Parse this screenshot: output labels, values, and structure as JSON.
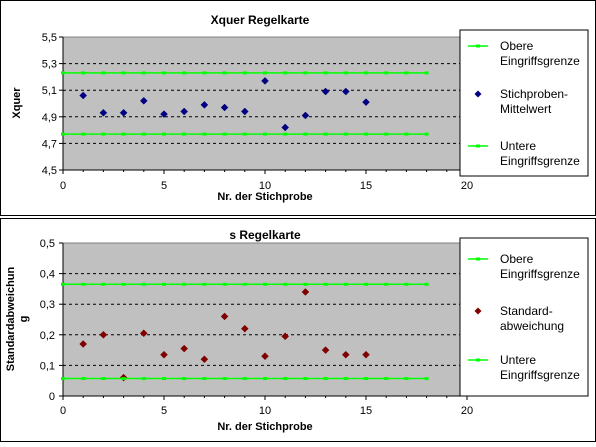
{
  "chart_data": [
    {
      "type": "scatter",
      "title": "Xquer Regelkarte",
      "xlabel": "Nr. der Stichprobe",
      "ylabel": "Xquer",
      "xlim": [
        0,
        20
      ],
      "ylim": [
        4.5,
        5.5
      ],
      "x_ticks": [
        "0",
        "5",
        "10",
        "15",
        "20"
      ],
      "y_ticks": [
        "4,5",
        "4,7",
        "4,9",
        "5,1",
        "5,3",
        "5,5"
      ],
      "grid": "horizontal-dashed",
      "legend_position": "right",
      "series": [
        {
          "name": "Obere Eingriffsgrenze",
          "kind": "limit-line",
          "color": "#00ff00",
          "x": [
            0,
            18
          ],
          "values": [
            5.23,
            5.23
          ]
        },
        {
          "name": "Stichproben-Mittelwert",
          "kind": "points",
          "marker": "diamond",
          "color": "#000080",
          "x": [
            1,
            2,
            3,
            4,
            5,
            6,
            7,
            8,
            9,
            10,
            11,
            12,
            13,
            14,
            15
          ],
          "values": [
            5.06,
            4.93,
            4.93,
            5.02,
            4.92,
            4.94,
            4.99,
            4.97,
            4.94,
            5.17,
            4.82,
            4.91,
            5.09,
            5.09,
            5.01
          ]
        },
        {
          "name": "Untere Eingriffsgrenze",
          "kind": "limit-line",
          "color": "#00ff00",
          "x": [
            0,
            18
          ],
          "values": [
            4.77,
            4.77
          ]
        }
      ],
      "legend": [
        "Obere Eingriffsgrenze",
        "Stichproben-Mittelwert",
        "Untere Eingriffsgrenze"
      ]
    },
    {
      "type": "scatter",
      "title": "s Regelkarte",
      "xlabel": "Nr. der Stichprobe",
      "ylabel": "Standardabweichung",
      "xlim": [
        0,
        20
      ],
      "ylim": [
        0,
        0.5
      ],
      "x_ticks": [
        "0",
        "5",
        "10",
        "15",
        "20"
      ],
      "y_ticks": [
        "0",
        "0,1",
        "0,2",
        "0,3",
        "0,4",
        "0,5"
      ],
      "grid": "horizontal-dashed",
      "legend_position": "right",
      "series": [
        {
          "name": "Obere Eingriffsgrenze",
          "kind": "limit-line",
          "color": "#00ff00",
          "x": [
            0,
            18
          ],
          "values": [
            0.365,
            0.365
          ]
        },
        {
          "name": "Standard-abweichung",
          "kind": "points",
          "marker": "diamond",
          "color": "#800000",
          "x": [
            1,
            2,
            3,
            4,
            5,
            6,
            7,
            8,
            9,
            10,
            11,
            12,
            13,
            14,
            15
          ],
          "values": [
            0.17,
            0.2,
            0.06,
            0.205,
            0.135,
            0.155,
            0.12,
            0.26,
            0.22,
            0.13,
            0.195,
            0.34,
            0.15,
            0.135,
            0.135
          ]
        },
        {
          "name": "Untere Eingriffsgrenze",
          "kind": "limit-line",
          "color": "#00ff00",
          "x": [
            0,
            18
          ],
          "values": [
            0.057,
            0.057
          ]
        }
      ],
      "legend": [
        "Obere Eingriffsgrenze",
        "Standard-abweichung",
        "Untere Eingriffsgrenze"
      ]
    }
  ],
  "colors": {
    "plot_background": "#c0c0c0",
    "panel_background": "#ffffff",
    "limit_line": "#00ff00",
    "xbar_points": "#000080",
    "s_points": "#800000",
    "border": "#000000"
  },
  "legend_wrapped": [
    [
      [
        "Obere",
        "Eingriffsgrenze"
      ],
      [
        "Stichproben-",
        "Mittelwert"
      ],
      [
        "Untere",
        "Eingriffsgrenze"
      ]
    ],
    [
      [
        "Obere",
        "Eingriffsgrenze"
      ],
      [
        "Standard-",
        "abweichung"
      ],
      [
        "Untere",
        "Eingriffsgrenze"
      ]
    ]
  ],
  "ylabel_wrapped": [
    [
      "Xquer"
    ],
    [
      "Standardabweichun",
      "g"
    ]
  ]
}
